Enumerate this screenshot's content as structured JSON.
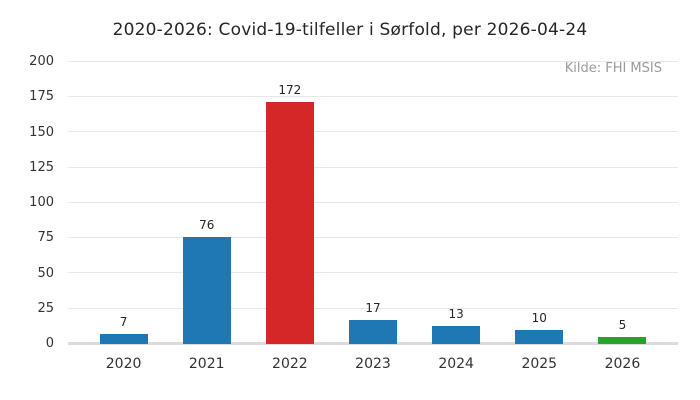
{
  "header": {
    "title": "2020-2026: Covid-19-tilfeller i Sørfold, per 2026-04-24",
    "source": "Kilde: FHI MSIS"
  },
  "chart_data": {
    "type": "bar",
    "title": "2020-2026: Covid-19-tilfeller i Sørfold, per 2026-04-24",
    "source": "Kilde: FHI MSIS",
    "categories": [
      "2020",
      "2021",
      "2022",
      "2023",
      "2024",
      "2025",
      "2026"
    ],
    "values": [
      7,
      76,
      172,
      17,
      13,
      10,
      5
    ],
    "bar_colors": [
      "#1f77b4",
      "#1f77b4",
      "#d62728",
      "#1f77b4",
      "#1f77b4",
      "#1f77b4",
      "#2ca02c"
    ],
    "value_labels_shown": true,
    "xlabel": "",
    "ylabel": "",
    "ylim": [
      0,
      200
    ],
    "yticks": [
      0,
      25,
      50,
      75,
      100,
      125,
      150,
      175,
      200
    ],
    "grid": true,
    "legend_position": "none",
    "colors": {
      "default_bar": "#1f77b4",
      "highlight_bar": "#d62728",
      "latest_bar": "#2ca02c",
      "gridline": "#e8e8e8",
      "baseline": "#dcdcdc",
      "title_text": "#262626",
      "tick_text": "#333333",
      "value_text": "#262626",
      "source_text": "#9a9a9a",
      "background": "#ffffff"
    }
  }
}
